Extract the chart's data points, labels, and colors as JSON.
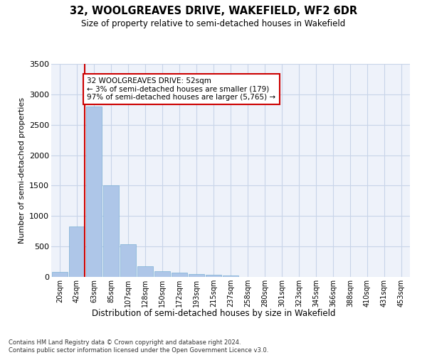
{
  "title1": "32, WOOLGREAVES DRIVE, WAKEFIELD, WF2 6DR",
  "title2": "Size of property relative to semi-detached houses in Wakefield",
  "xlabel": "Distribution of semi-detached houses by size in Wakefield",
  "ylabel": "Number of semi-detached properties",
  "footnote": "Contains HM Land Registry data © Crown copyright and database right 2024.\nContains public sector information licensed under the Open Government Licence v3.0.",
  "annotation_line1": "32 WOOLGREAVES DRIVE: 52sqm",
  "annotation_line2": "← 3% of semi-detached houses are smaller (179)",
  "annotation_line3": "97% of semi-detached houses are larger (5,765) →",
  "property_size_idx": 1.45,
  "categories": [
    "20sqm",
    "42sqm",
    "63sqm",
    "85sqm",
    "107sqm",
    "128sqm",
    "150sqm",
    "172sqm",
    "193sqm",
    "215sqm",
    "237sqm",
    "258sqm",
    "280sqm",
    "301sqm",
    "323sqm",
    "345sqm",
    "366sqm",
    "388sqm",
    "410sqm",
    "431sqm",
    "453sqm"
  ],
  "values": [
    80,
    830,
    2800,
    1500,
    540,
    170,
    90,
    70,
    50,
    30,
    20,
    5,
    2,
    2,
    1,
    1,
    1,
    1,
    1,
    1,
    1
  ],
  "bar_color": "#aec6e8",
  "bar_edge_color": "#7aafd4",
  "red_line_color": "#cc0000",
  "annotation_box_edge": "#cc0000",
  "grid_color": "#c8d4e8",
  "background_color": "#eef2fa",
  "ylim": [
    0,
    3500
  ],
  "yticks": [
    0,
    500,
    1000,
    1500,
    2000,
    2500,
    3000,
    3500
  ]
}
